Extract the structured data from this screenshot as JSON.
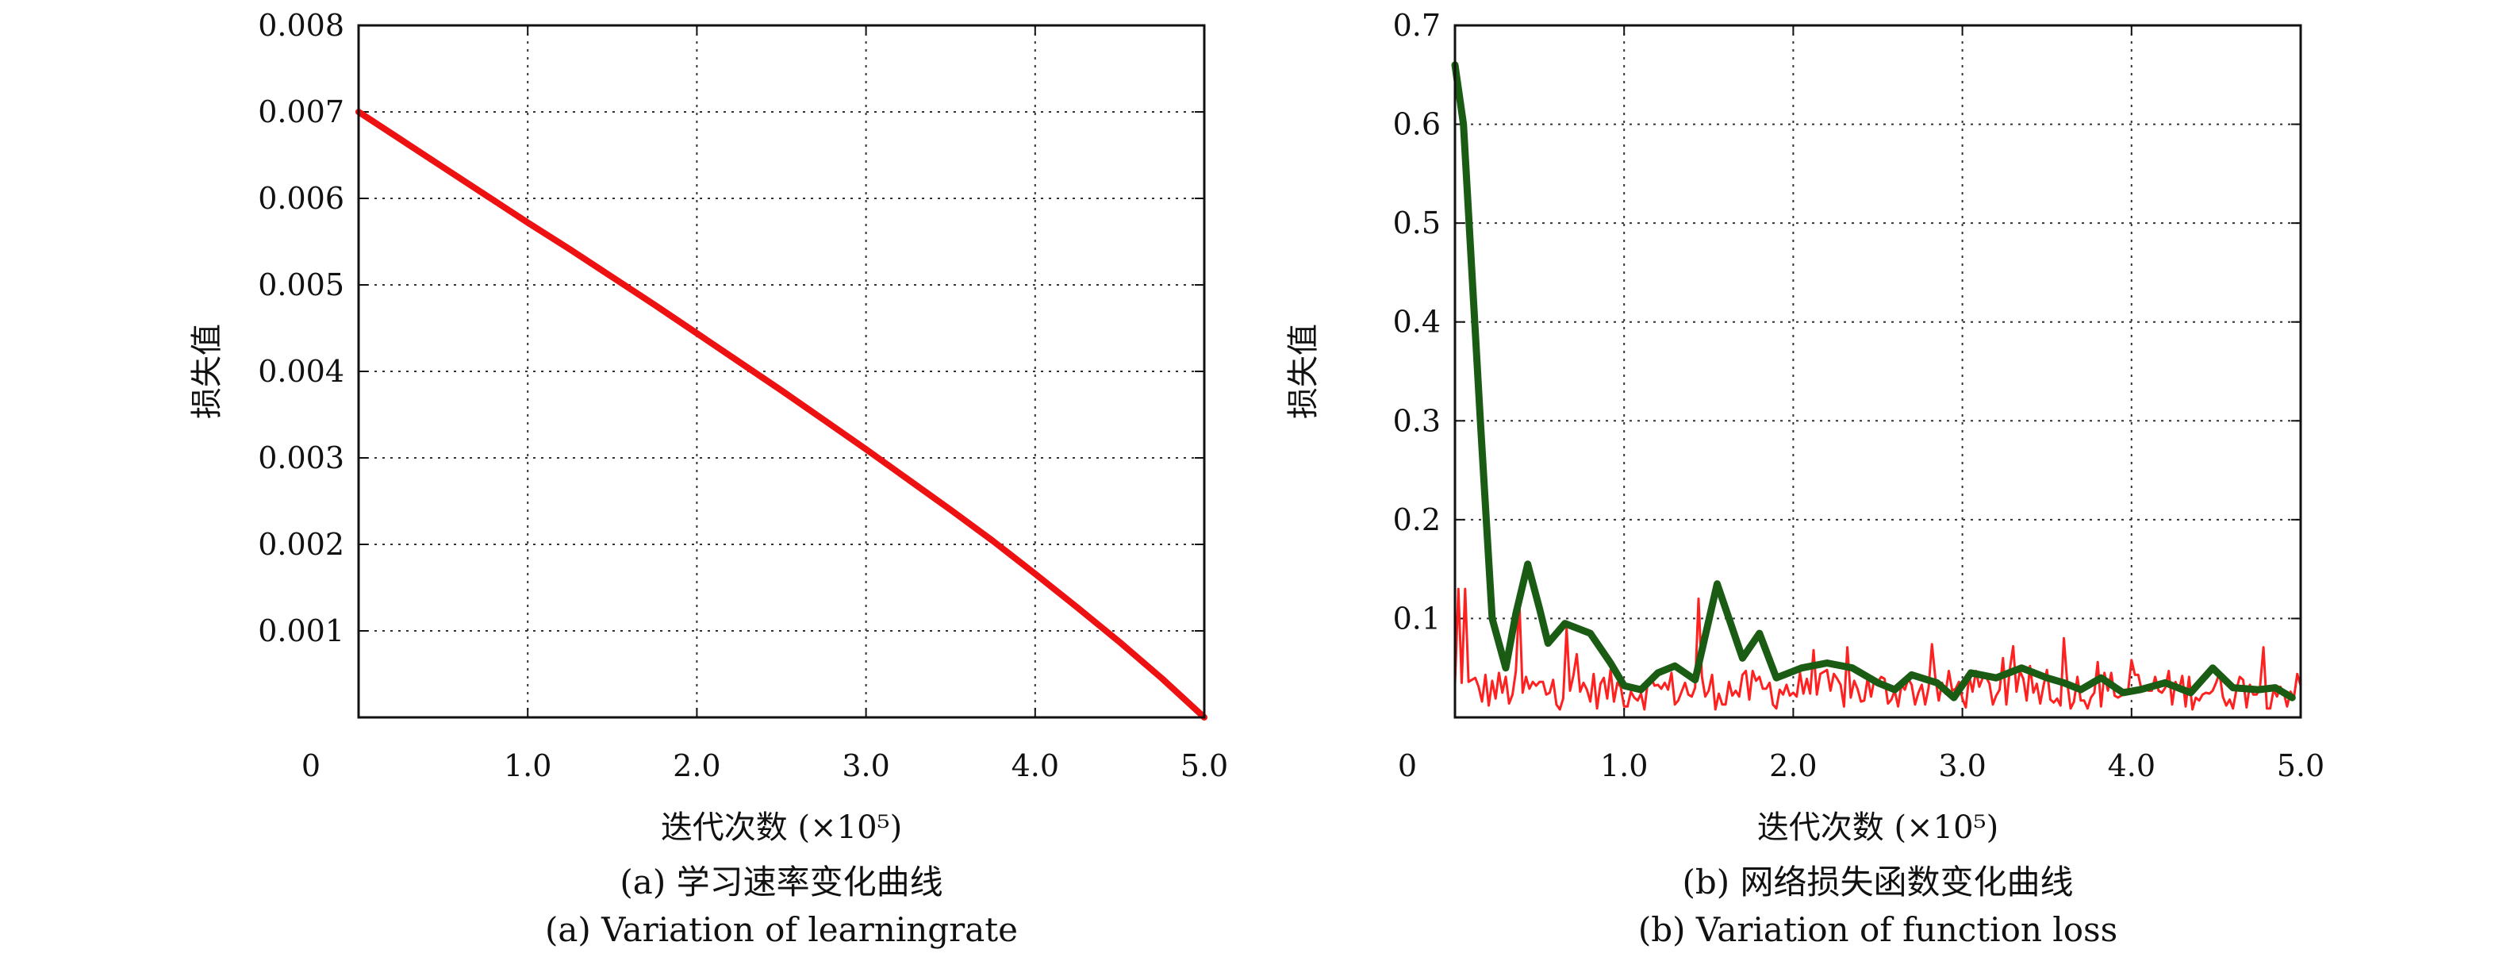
{
  "chart_data": [
    {
      "type": "line",
      "caption_cn": "(a) 学习速率变化曲线",
      "caption_en": "(a) Variation of learningrate",
      "xlabel": "迭代次数 (×10⁵)",
      "ylabel": "损失值",
      "xlim": [
        0,
        5.0
      ],
      "ylim": [
        0,
        0.008
      ],
      "xticks": [
        "0",
        "1.0",
        "2.0",
        "3.0",
        "4.0",
        "5.0"
      ],
      "yticks": [
        "0.001",
        "0.002",
        "0.003",
        "0.004",
        "0.005",
        "0.006",
        "0.007",
        "0.008"
      ],
      "grid": true,
      "series": [
        {
          "color": "#ee1111",
          "x": [
            0,
            0.25,
            0.5,
            0.75,
            1.0,
            1.25,
            1.5,
            1.75,
            2.0,
            2.25,
            2.5,
            2.75,
            3.0,
            3.25,
            3.5,
            3.75,
            4.0,
            4.25,
            4.5,
            4.75,
            5.0
          ],
          "y": [
            0.007,
            0.00668,
            0.00636,
            0.00604,
            0.00572,
            0.00541,
            0.00509,
            0.00477,
            0.00444,
            0.00411,
            0.00378,
            0.00344,
            0.0031,
            0.00275,
            0.0024,
            0.00204,
            0.00166,
            0.00127,
            0.00087,
            0.00045,
            0.0
          ]
        }
      ]
    },
    {
      "type": "line",
      "caption_cn": "(b) 网络损失函数变化曲线",
      "caption_en": "(b) Variation of function loss",
      "xlabel": "迭代次数 (×10⁵)",
      "ylabel": "损失值",
      "xlim": [
        0,
        5.0
      ],
      "ylim": [
        0,
        0.7
      ],
      "xticks": [
        "0",
        "1.0",
        "2.0",
        "3.0",
        "4.0",
        "5.0"
      ],
      "yticks": [
        "0.1",
        "0.2",
        "0.3",
        "0.4",
        "0.5",
        "0.6",
        "0.7"
      ],
      "grid": true,
      "series": [
        {
          "color": "#1a5c14",
          "x": [
            0.0,
            0.05,
            0.15,
            0.22,
            0.3,
            0.36,
            0.43,
            0.5,
            0.55,
            0.65,
            0.8,
            0.92,
            1.0,
            1.1,
            1.2,
            1.3,
            1.42,
            1.55,
            1.7,
            1.8,
            1.9,
            2.05,
            2.2,
            2.35,
            2.5,
            2.6,
            2.7,
            2.85,
            2.95,
            3.05,
            3.2,
            3.35,
            3.5,
            3.6,
            3.7,
            3.82,
            3.95,
            4.05,
            4.2,
            4.35,
            4.48,
            4.6,
            4.75,
            4.85,
            4.95
          ],
          "y": [
            0.66,
            0.6,
            0.3,
            0.1,
            0.05,
            0.105,
            0.155,
            0.11,
            0.075,
            0.095,
            0.085,
            0.055,
            0.032,
            0.028,
            0.045,
            0.052,
            0.038,
            0.135,
            0.06,
            0.085,
            0.04,
            0.05,
            0.055,
            0.05,
            0.035,
            0.028,
            0.043,
            0.035,
            0.02,
            0.045,
            0.04,
            0.05,
            0.04,
            0.035,
            0.028,
            0.04,
            0.025,
            0.028,
            0.035,
            0.025,
            0.05,
            0.03,
            0.028,
            0.03,
            0.02
          ]
        },
        {
          "color": "#ff2020",
          "x": [],
          "y": []
        }
      ]
    }
  ]
}
